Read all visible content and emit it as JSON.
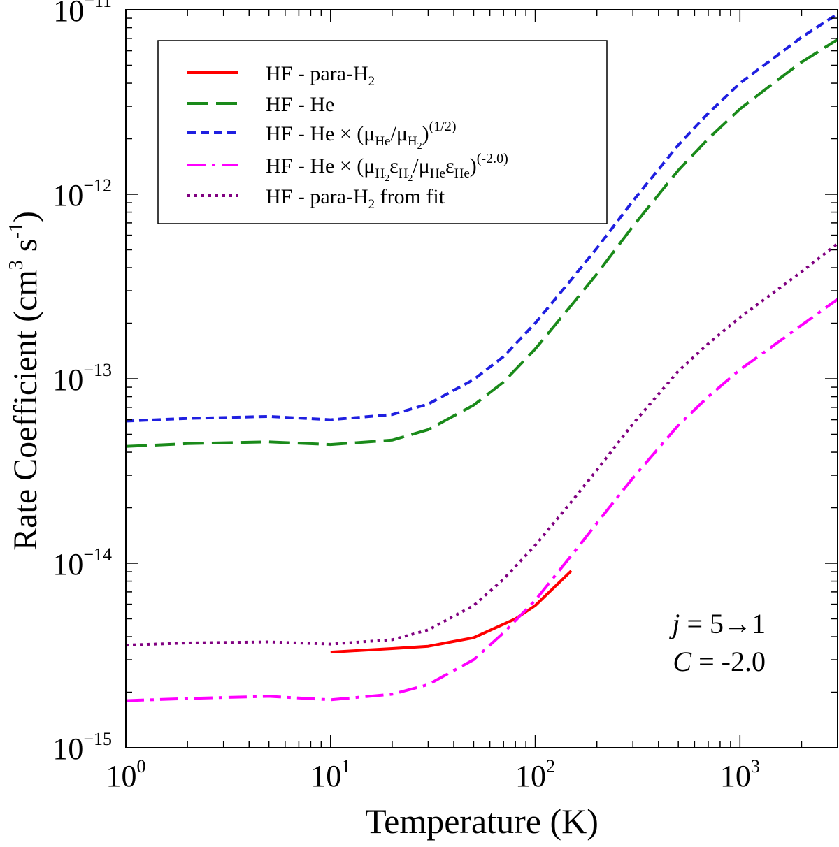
{
  "chart_data": {
    "type": "line",
    "xlabel": "Temperature (K)",
    "ylabel": "Rate Coefficient (cm³ s⁻¹)",
    "ylabel_base": "Rate Coefficient (cm",
    "ylabel_exp1": "3",
    "ylabel_mid": " s",
    "ylabel_exp2": "-1",
    "ylabel_end": ")",
    "x_scale": "log",
    "y_scale": "log",
    "xlim": [
      1,
      3000
    ],
    "ylim": [
      1e-15,
      1e-11
    ],
    "x_ticks": [
      {
        "value": 1,
        "base": "10",
        "exp": "0"
      },
      {
        "value": 10,
        "base": "10",
        "exp": "1"
      },
      {
        "value": 100,
        "base": "10",
        "exp": "2"
      },
      {
        "value": 1000,
        "base": "10",
        "exp": "3"
      }
    ],
    "y_ticks": [
      {
        "value": 1e-15,
        "base": "10",
        "exp": "−15"
      },
      {
        "value": 1e-14,
        "base": "10",
        "exp": "−14"
      },
      {
        "value": 1e-13,
        "base": "10",
        "exp": "−13"
      },
      {
        "value": 1e-12,
        "base": "10",
        "exp": "−12"
      },
      {
        "value": 1e-11,
        "base": "10",
        "exp": "−11"
      }
    ],
    "grid": false,
    "legend_position": "top-left",
    "annotation": {
      "line1_var": "j",
      "line1_rest": " = 5→1",
      "line2_var": "C",
      "line2_rest": " = -2.0"
    },
    "series": [
      {
        "name": "HF - para-H₂",
        "legend_parts": [
          {
            "t": "HF - para-H"
          },
          {
            "t": "2",
            "sub": true
          }
        ],
        "color": "#ff0000",
        "dash": "solid",
        "x": [
          10,
          20,
          30,
          50,
          80,
          100,
          150
        ],
        "y": [
          3.3e-15,
          3.45e-15,
          3.55e-15,
          3.95e-15,
          5e-15,
          5.9e-15,
          9.1e-15
        ]
      },
      {
        "name": "HF - He",
        "legend_parts": [
          {
            "t": "HF - He"
          }
        ],
        "color": "#1a8a1a",
        "dash": "long-dash",
        "x": [
          1,
          2,
          5,
          10,
          20,
          30,
          50,
          70,
          100,
          150,
          200,
          300,
          500,
          700,
          1000,
          1500,
          2000,
          3000
        ],
        "y": [
          4.3e-14,
          4.45e-14,
          4.55e-14,
          4.4e-14,
          4.65e-14,
          5.3e-14,
          7.2e-14,
          9.6e-14,
          1.45e-13,
          2.5e-13,
          3.7e-13,
          6.7e-13,
          1.35e-12,
          2e-12,
          2.9e-12,
          4.1e-12,
          5.2e-12,
          6.9e-12
        ]
      },
      {
        "name": "HF - He × (μHe/μH₂)^(1/2)",
        "legend_parts": [
          {
            "t": "HF - He × (μ"
          },
          {
            "t": "He",
            "sub": true
          },
          {
            "t": "/μ"
          },
          {
            "t": "H",
            "sub": true
          },
          {
            "t": "2",
            "subsub": true
          },
          {
            "t": ")"
          },
          {
            "t": "(1/2)",
            "sup": true
          }
        ],
        "color": "#1f1fe0",
        "dash": "short-dash",
        "x": [
          1,
          2,
          5,
          10,
          20,
          30,
          50,
          70,
          100,
          150,
          200,
          300,
          500,
          700,
          1000,
          1500,
          2000,
          3000
        ],
        "y": [
          5.9e-14,
          6.1e-14,
          6.25e-14,
          6e-14,
          6.4e-14,
          7.3e-14,
          9.9e-14,
          1.32e-13,
          2e-13,
          3.45e-13,
          5.1e-13,
          9.2e-13,
          1.85e-12,
          2.75e-12,
          4e-12,
          5.6e-12,
          7.1e-12,
          9.5e-12
        ]
      },
      {
        "name": "HF - He × (μH₂εH₂/μHeεHe)^(-2.0)",
        "legend_parts": [
          {
            "t": "HF - He × (μ"
          },
          {
            "t": "H",
            "sub": true
          },
          {
            "t": "2",
            "subsub": true
          },
          {
            "t": "ε"
          },
          {
            "t": "H",
            "sub": true
          },
          {
            "t": "2",
            "subsub": true
          },
          {
            "t": "/μ"
          },
          {
            "t": "He",
            "sub": true
          },
          {
            "t": "ε"
          },
          {
            "t": "He",
            "sub": true
          },
          {
            "t": ")"
          },
          {
            "t": "(-2.0)",
            "sup": true
          }
        ],
        "color": "#ff00ff",
        "dash": "dash-dot",
        "x": [
          1,
          2,
          5,
          10,
          20,
          30,
          50,
          70,
          100,
          150,
          200,
          300,
          500,
          700,
          1000,
          1500,
          2000,
          3000
        ],
        "y": [
          1.8e-15,
          1.85e-15,
          1.9e-15,
          1.82e-15,
          1.95e-15,
          2.2e-15,
          3e-15,
          4.2e-15,
          6.3e-15,
          1.1e-14,
          1.65e-14,
          2.9e-14,
          5.6e-14,
          8e-14,
          1.12e-13,
          1.55e-13,
          1.95e-13,
          2.7e-13
        ]
      },
      {
        "name": "HF - para-H₂ from fit",
        "legend_parts": [
          {
            "t": "HF - para-H"
          },
          {
            "t": "2",
            "sub": true
          },
          {
            "t": " from fit"
          }
        ],
        "color": "#800080",
        "dash": "dotted",
        "x": [
          1,
          2,
          5,
          10,
          20,
          30,
          50,
          70,
          100,
          150,
          200,
          300,
          500,
          700,
          1000,
          1500,
          2000,
          3000
        ],
        "y": [
          3.6e-15,
          3.7e-15,
          3.75e-15,
          3.65e-15,
          3.85e-15,
          4.35e-15,
          5.9e-15,
          8.2e-15,
          1.25e-14,
          2.15e-14,
          3.2e-14,
          5.7e-14,
          1.1e-13,
          1.55e-13,
          2.15e-13,
          3e-13,
          3.8e-13,
          5.4e-13
        ]
      }
    ]
  }
}
